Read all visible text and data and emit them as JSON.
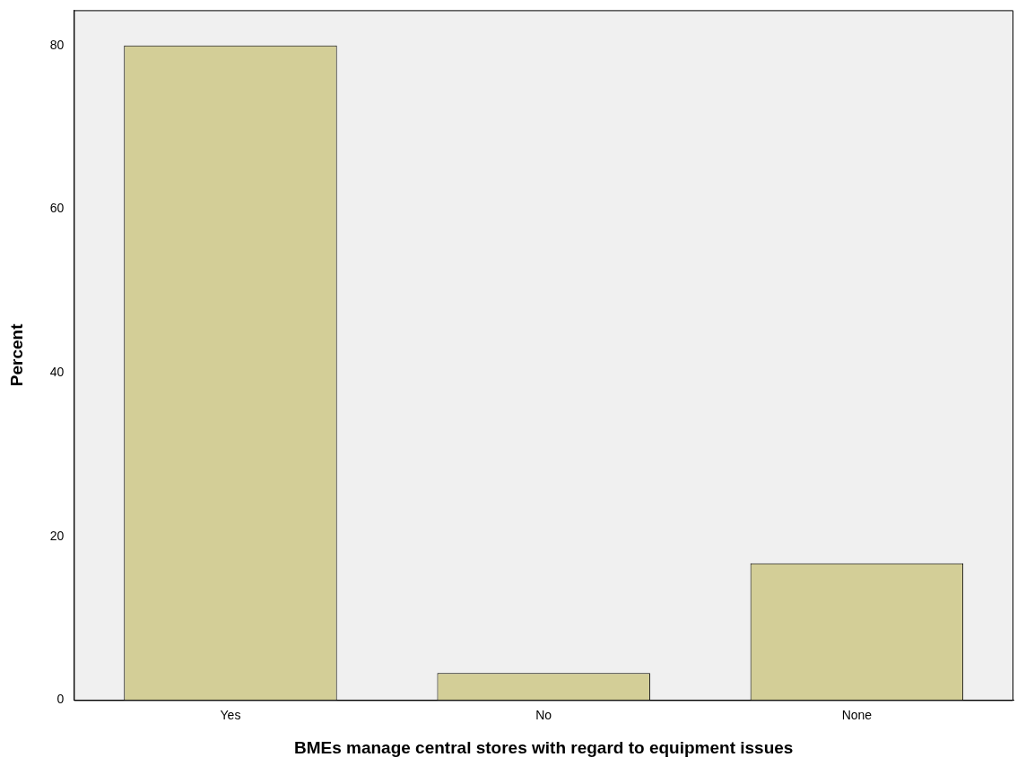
{
  "chart_data": {
    "type": "bar",
    "xlabel": "BMEs manage central stores with regard to equipment issues",
    "ylabel": "Percent",
    "categories": [
      "Yes",
      "No",
      "None"
    ],
    "values": [
      80,
      3.3,
      16.7
    ],
    "color": "#d3ce97",
    "ylim": [
      0,
      84.3
    ],
    "yticks": [
      0,
      20,
      40,
      60,
      80
    ],
    "grid": false,
    "legend": false
  }
}
